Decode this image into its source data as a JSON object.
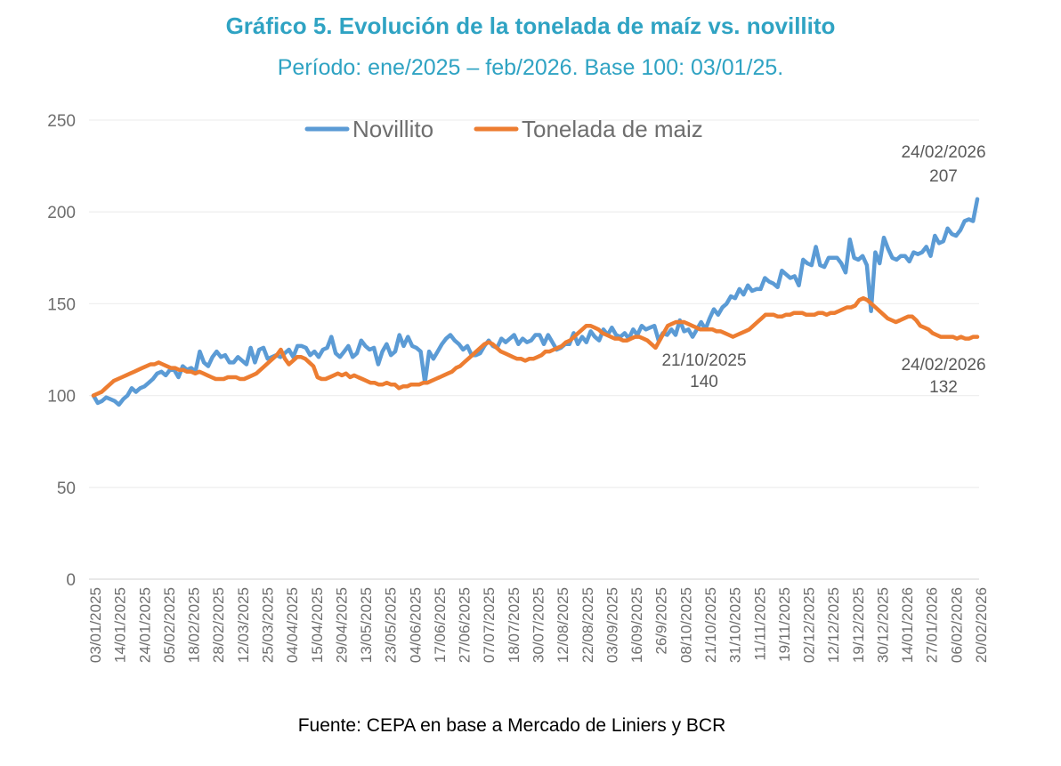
{
  "chart_data": {
    "type": "line",
    "title": "Gráfico 5. Evolución de la tonelada de maíz vs. novillito",
    "subtitle": "Período: ene/2025 – feb/2026. Base 100: 03/01/25.",
    "source": "Fuente: CEPA en base a Mercado de Liniers y BCR",
    "xlabel": "",
    "ylabel": "",
    "ylim": [
      0,
      250
    ],
    "yticks": [
      0,
      50,
      100,
      150,
      200,
      250
    ],
    "grid": true,
    "legend_position": "top-center",
    "xtick_labels": [
      "03/01/2025",
      "14/01/2025",
      "24/01/2025",
      "05/02/2025",
      "18/02/2025",
      "28/02/2025",
      "12/03/2025",
      "25/03/2025",
      "04/04/2025",
      "15/04/2025",
      "29/04/2025",
      "13/05/2025",
      "23/05/2025",
      "04/06/2025",
      "17/06/2025",
      "27/06/2025",
      "07/07/2025",
      "18/07/2025",
      "30/07/2025",
      "12/08/2025",
      "22/08/2025",
      "03/09/2025",
      "16/09/2025",
      "26/9/2025",
      "08/10/2025",
      "21/10/2025",
      "31/10/2025",
      "11/11/2025",
      "19/11/2025",
      "02/12/2025",
      "12/12/2025",
      "19/12/2025",
      "30/12/2025",
      "14/01/2026",
      "27/01/2026",
      "06/02/2026",
      "20/02/2026"
    ],
    "series": [
      {
        "name": "Novillito",
        "color": "#5B9BD5",
        "values": [
          100,
          96,
          97,
          99,
          98,
          97,
          95,
          98,
          100,
          104,
          102,
          104,
          105,
          107,
          109,
          112,
          113,
          111,
          114,
          114,
          110,
          116,
          114,
          115,
          113,
          124,
          118,
          116,
          121,
          124,
          121,
          122,
          118,
          118,
          121,
          119,
          117,
          126,
          118,
          125,
          126,
          120,
          121,
          122,
          121,
          123,
          125,
          121,
          127,
          127,
          126,
          122,
          124,
          121,
          125,
          126,
          132,
          123,
          121,
          124,
          127,
          121,
          123,
          130,
          127,
          125,
          126,
          117,
          124,
          128,
          122,
          124,
          133,
          127,
          132,
          127,
          126,
          124,
          107,
          124,
          120,
          124,
          128,
          131,
          133,
          130,
          128,
          125,
          127,
          122,
          122,
          123,
          127,
          130,
          127,
          126,
          131,
          129,
          131,
          133,
          128,
          131,
          129,
          130,
          133,
          133,
          128,
          133,
          129,
          125,
          126,
          128,
          128,
          134,
          128,
          132,
          129,
          135,
          132,
          130,
          136,
          133,
          137,
          133,
          132,
          134,
          131,
          136,
          133,
          138,
          136,
          137,
          138,
          130,
          134,
          133,
          136,
          133,
          141,
          135,
          136,
          132,
          136,
          140,
          136,
          142,
          147,
          144,
          148,
          150,
          154,
          153,
          158,
          155,
          160,
          157,
          158,
          158,
          164,
          162,
          161,
          159,
          168,
          166,
          164,
          165,
          160,
          174,
          172,
          171,
          181,
          171,
          170,
          175,
          175,
          175,
          172,
          167,
          185,
          175,
          174,
          176,
          171,
          146,
          178,
          172,
          186,
          180,
          175,
          174,
          176,
          176,
          173,
          178,
          177,
          178,
          181,
          176,
          187,
          183,
          184,
          191,
          188,
          187,
          190,
          195,
          196,
          195,
          207
        ]
      },
      {
        "name": "Tonelada de maiz",
        "color": "#ED7D31",
        "values": [
          100,
          101,
          102,
          104,
          106,
          108,
          109,
          110,
          111,
          112,
          113,
          114,
          115,
          116,
          117,
          117,
          118,
          117,
          116,
          115,
          115,
          114,
          114,
          113,
          113,
          112,
          113,
          112,
          111,
          110,
          109,
          109,
          109,
          110,
          110,
          110,
          109,
          109,
          110,
          111,
          112,
          114,
          116,
          118,
          120,
          122,
          125,
          120,
          117,
          119,
          121,
          121,
          120,
          118,
          116,
          110,
          109,
          109,
          110,
          111,
          112,
          111,
          112,
          110,
          111,
          110,
          109,
          108,
          107,
          107,
          106,
          106,
          107,
          106,
          106,
          104,
          105,
          105,
          106,
          106,
          106,
          107,
          107,
          108,
          109,
          110,
          111,
          112,
          113,
          115,
          116,
          118,
          120,
          122,
          124,
          126,
          128,
          129,
          128,
          126,
          124,
          123,
          122,
          121,
          120,
          120,
          119,
          120,
          120,
          121,
          122,
          124,
          124,
          125,
          126,
          127,
          129,
          130,
          132,
          134,
          136,
          138,
          138,
          137,
          136,
          134,
          133,
          132,
          131,
          131,
          130,
          130,
          131,
          132,
          132,
          131,
          130,
          128,
          126,
          130,
          134,
          138,
          139,
          140,
          140,
          140,
          139,
          138,
          137,
          136,
          136,
          136,
          136,
          135,
          135,
          134,
          133,
          132,
          133,
          134,
          135,
          136,
          138,
          140,
          142,
          144,
          144,
          144,
          143,
          143,
          144,
          144,
          145,
          145,
          145,
          144,
          144,
          144,
          145,
          145,
          144,
          145,
          145,
          146,
          147,
          148,
          148,
          149,
          152,
          153,
          152,
          150,
          148,
          146,
          144,
          142,
          141,
          140,
          141,
          142,
          143,
          143,
          141,
          138,
          137,
          136,
          134,
          133,
          132,
          132,
          132,
          132,
          131,
          132,
          131,
          131,
          132,
          132
        ]
      }
    ],
    "annotations": [
      {
        "label_date": "24/02/2026",
        "label_value": "207",
        "series": "Novillito"
      },
      {
        "label_date": "21/10/2025",
        "label_value": "140",
        "series": "Tonelada de maiz"
      },
      {
        "label_date": "24/02/2026",
        "label_value": "132",
        "series": "Tonelada de maiz"
      }
    ]
  }
}
